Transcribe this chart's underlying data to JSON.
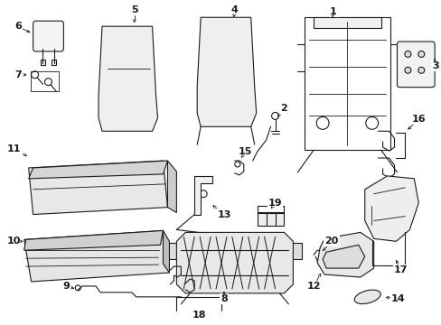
{
  "bg_color": "#ffffff",
  "line_color": "#1a1a1a",
  "fig_width": 4.89,
  "fig_height": 3.6,
  "dpi": 100,
  "label_fs": 8.0
}
